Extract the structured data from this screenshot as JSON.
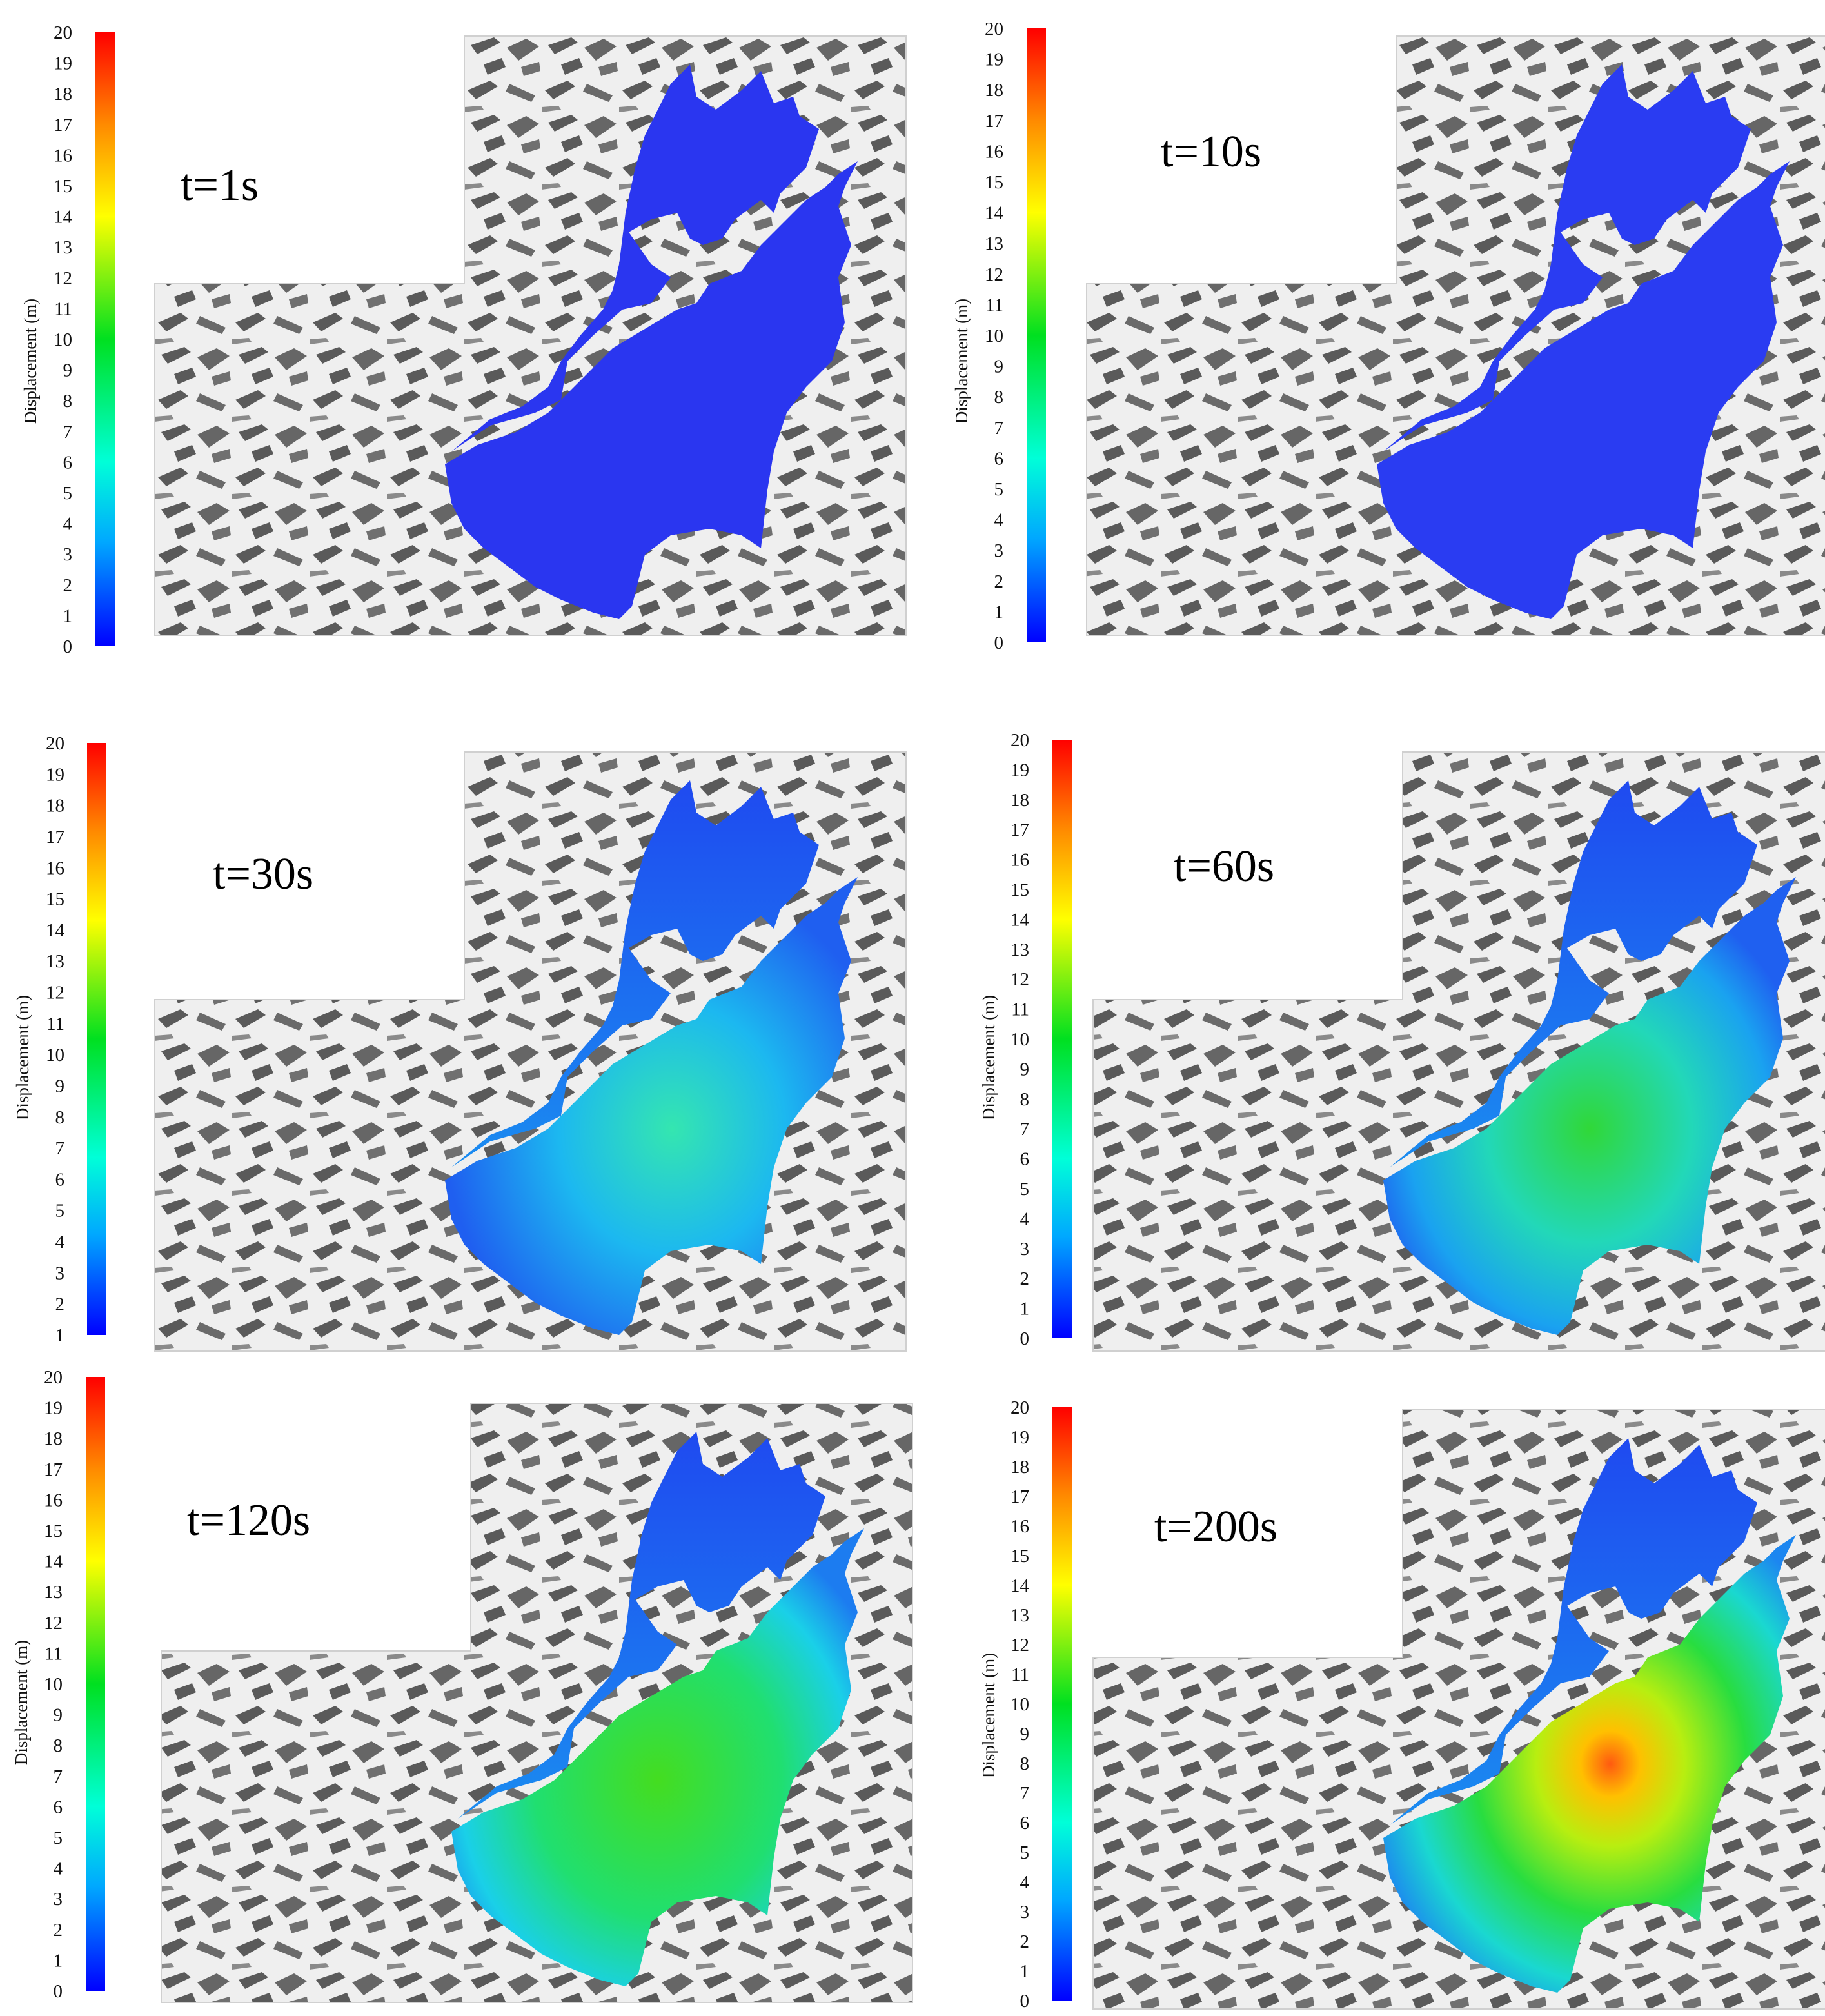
{
  "colorbar": {
    "title": "Displacement (m)",
    "stops": [
      "#0000ff",
      "#00a8ff",
      "#00ffd8",
      "#00e020",
      "#ffff00",
      "#ff8a00",
      "#ff0000"
    ]
  },
  "panels": [
    {
      "time_label": "t=1s",
      "ticks": [
        "0",
        "1",
        "2",
        "3",
        "4",
        "5",
        "6",
        "7",
        "8",
        "9",
        "10",
        "11",
        "12",
        "13",
        "14",
        "15",
        "16",
        "17",
        "18",
        "19",
        "20"
      ]
    },
    {
      "time_label": "t=10s",
      "ticks": [
        "0",
        "1",
        "2",
        "3",
        "4",
        "5",
        "6",
        "7",
        "8",
        "9",
        "10",
        "11",
        "12",
        "13",
        "14",
        "15",
        "16",
        "17",
        "18",
        "19",
        "20"
      ]
    },
    {
      "time_label": "t=30s",
      "ticks": [
        "1",
        "2",
        "3",
        "4",
        "5",
        "6",
        "7",
        "8",
        "9",
        "10",
        "11",
        "12",
        "13",
        "14",
        "15",
        "16",
        "17",
        "18",
        "19",
        "20"
      ]
    },
    {
      "time_label": "t=60s",
      "ticks": [
        "0",
        "1",
        "2",
        "3",
        "4",
        "5",
        "6",
        "7",
        "8",
        "9",
        "10",
        "11",
        "12",
        "13",
        "14",
        "15",
        "16",
        "17",
        "18",
        "19",
        "20"
      ]
    },
    {
      "time_label": "t=120s",
      "ticks": [
        "0",
        "1",
        "2",
        "3",
        "4",
        "5",
        "6",
        "7",
        "8",
        "9",
        "10",
        "11",
        "12",
        "13",
        "14",
        "15",
        "16",
        "17",
        "18",
        "19",
        "20"
      ]
    },
    {
      "time_label": "t=200s",
      "ticks": [
        "0",
        "1",
        "2",
        "3",
        "4",
        "5",
        "6",
        "7",
        "8",
        "9",
        "10",
        "11",
        "12",
        "13",
        "14",
        "15",
        "16",
        "17",
        "18",
        "19",
        "20"
      ]
    }
  ],
  "colors": {
    "terrain_light": "#eeeeee",
    "terrain_dark": "#5a5a5a",
    "slide_base": "#2a36f0"
  }
}
